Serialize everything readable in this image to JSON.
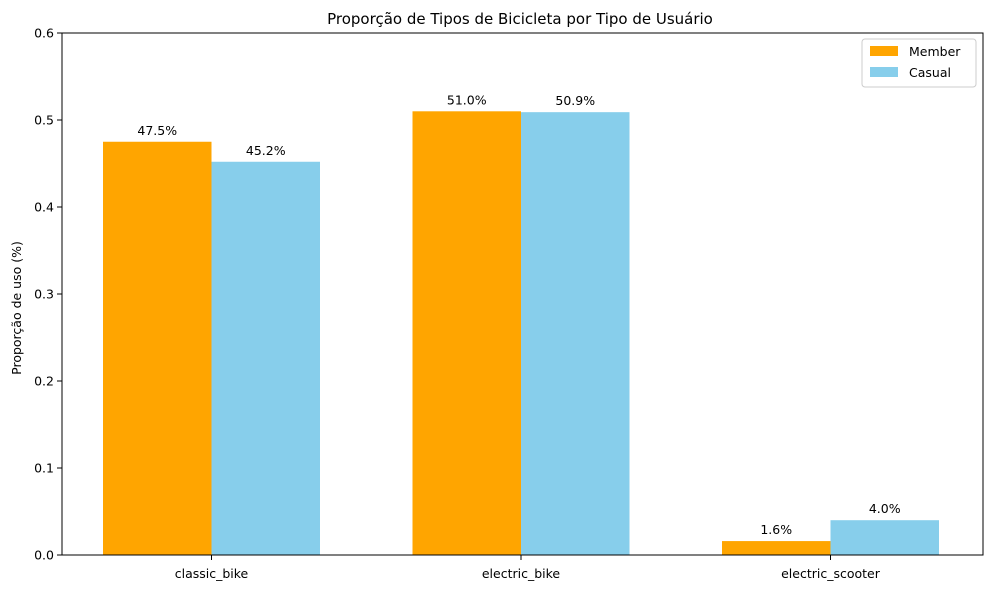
{
  "chart_data": {
    "type": "bar",
    "title": "Proporção de Tipos de Bicicleta por Tipo de Usuário",
    "xlabel": "",
    "ylabel": "Proporção de uso (%)",
    "categories": [
      "classic_bike",
      "electric_bike",
      "electric_scooter"
    ],
    "series": [
      {
        "name": "Member",
        "color": "#ffa500",
        "values": [
          0.475,
          0.51,
          0.016
        ],
        "labels": [
          "47.5%",
          "51.0%",
          "1.6%"
        ]
      },
      {
        "name": "Casual",
        "color": "#87ceeb",
        "values": [
          0.452,
          0.509,
          0.04
        ],
        "labels": [
          "45.2%",
          "50.9%",
          "4.0%"
        ]
      }
    ],
    "ylim": [
      0,
      0.6
    ],
    "yticks": [
      "0.0",
      "0.1",
      "0.2",
      "0.3",
      "0.4",
      "0.5",
      "0.6"
    ],
    "grid": false,
    "legend_position": "top-right"
  }
}
